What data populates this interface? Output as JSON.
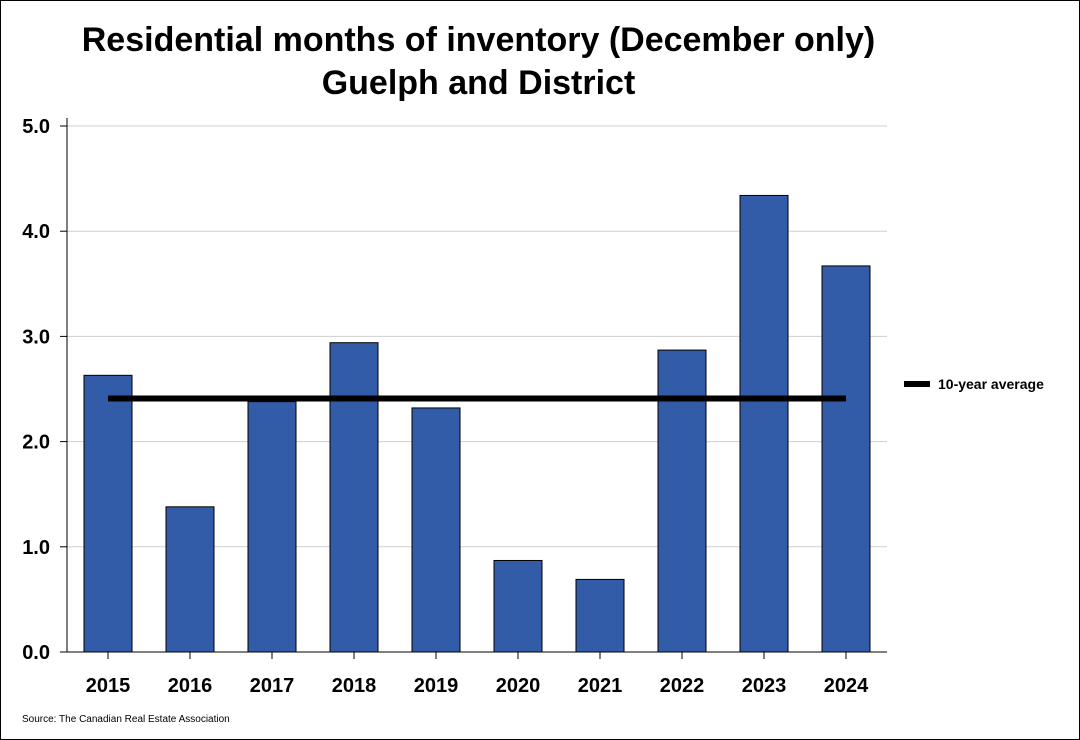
{
  "chart_data": {
    "type": "bar",
    "title": "Residential months of inventory (December only)",
    "subtitle": "Guelph and District",
    "categories": [
      "2015",
      "2016",
      "2017",
      "2018",
      "2019",
      "2020",
      "2021",
      "2022",
      "2023",
      "2024"
    ],
    "series": [
      {
        "name": "",
        "values": [
          2.63,
          1.38,
          2.38,
          2.94,
          2.32,
          0.87,
          0.69,
          2.87,
          4.34,
          3.67
        ],
        "color": "#335ca8"
      }
    ],
    "reference_line": {
      "name": "10-year average",
      "value": 2.41,
      "color": "#000000"
    },
    "ylim": [
      0,
      5
    ],
    "yticks": [
      0,
      1,
      2,
      3,
      4,
      5
    ],
    "ytick_labels": [
      "0.0",
      "1.0",
      "2.0",
      "3.0",
      "4.0",
      "5.0"
    ],
    "xlabel": "",
    "ylabel": "",
    "grid": true,
    "legend_position": "right",
    "source": "Source: The Canadian Real Estate Association"
  }
}
